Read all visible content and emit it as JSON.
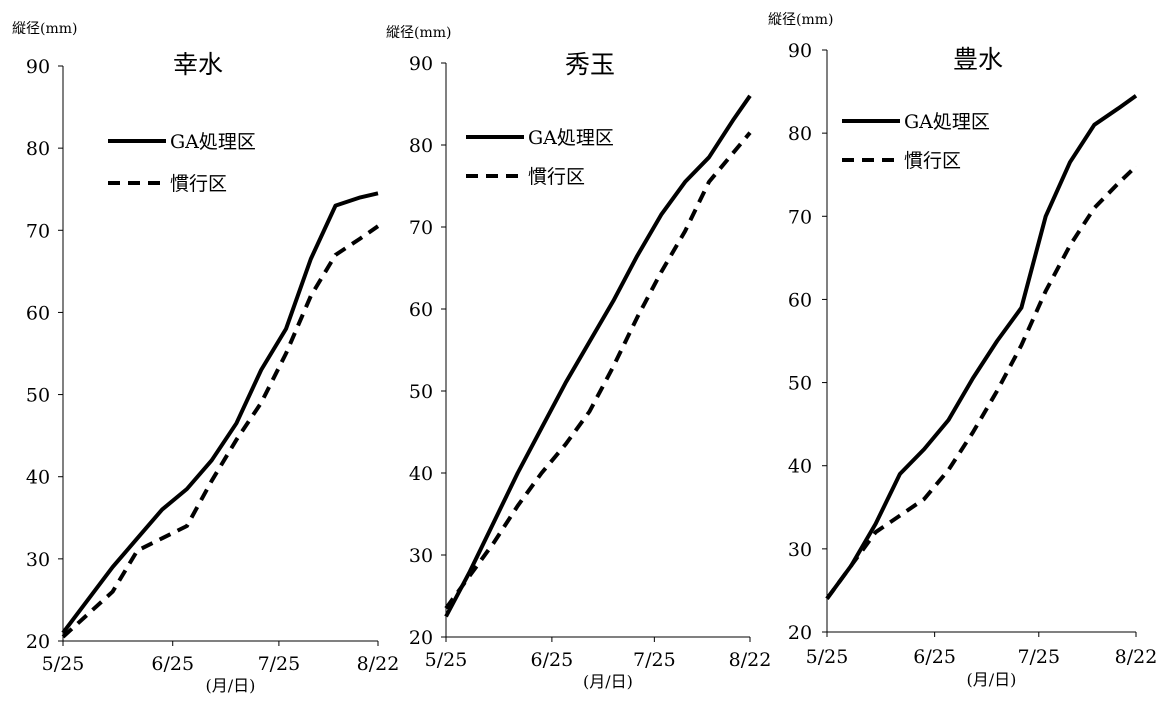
{
  "chart_data": [
    {
      "type": "line",
      "title": "幸水",
      "ylabel": "縦径(mm)",
      "xlabel": "(月/日)",
      "x_ticks": [
        "5/25",
        "6/25",
        "7/25",
        "8/22"
      ],
      "ylim": [
        20,
        90
      ],
      "y_ticks": [
        20,
        30,
        40,
        50,
        60,
        70,
        80,
        90
      ],
      "series": [
        {
          "name": "GA処理区",
          "style": "solid",
          "x": [
            "5/25",
            "6/1",
            "6/8",
            "6/15",
            "6/22",
            "6/29",
            "7/6",
            "7/13",
            "7/20",
            "7/27",
            "8/3",
            "8/10",
            "8/17",
            "8/22"
          ],
          "values": [
            21,
            25,
            29,
            32.5,
            36,
            38.5,
            42,
            46.5,
            53,
            58,
            66.5,
            73,
            74,
            74.5
          ]
        },
        {
          "name": "慣行区",
          "style": "dashed",
          "x": [
            "5/25",
            "6/8",
            "6/15",
            "6/22",
            "6/29",
            "7/6",
            "7/13",
            "7/20",
            "7/27",
            "8/3",
            "8/10",
            "8/17",
            "8/22"
          ],
          "values": [
            20.5,
            26,
            31,
            32.5,
            34,
            39.5,
            44.5,
            49,
            55,
            62,
            67,
            69,
            70.5
          ]
        }
      ],
      "legend": "upper-left"
    },
    {
      "type": "line",
      "title": "秀玉",
      "ylabel": "縦径(mm)",
      "xlabel": "(月/日)",
      "x_ticks": [
        "5/25",
        "6/25",
        "7/25",
        "8/22"
      ],
      "ylim": [
        20,
        90
      ],
      "y_ticks": [
        20,
        30,
        40,
        50,
        60,
        70,
        80,
        90
      ],
      "series": [
        {
          "name": "GA処理区",
          "style": "solid",
          "x": [
            "5/25",
            "6/1",
            "6/8",
            "6/15",
            "6/22",
            "6/29",
            "7/6",
            "7/13",
            "7/20",
            "7/27",
            "8/3",
            "8/10",
            "8/17",
            "8/22"
          ],
          "values": [
            22.5,
            28,
            34,
            40,
            45.5,
            51,
            56,
            61,
            66.5,
            71.5,
            75.5,
            78.5,
            83,
            86
          ]
        },
        {
          "name": "慣行区",
          "style": "dashed",
          "x": [
            "5/25",
            "6/1",
            "6/8",
            "6/15",
            "6/22",
            "6/29",
            "7/6",
            "7/13",
            "7/20",
            "7/27",
            "8/3",
            "8/10",
            "8/17",
            "8/22"
          ],
          "values": [
            23.5,
            27.5,
            31.5,
            36,
            40,
            43.5,
            47.5,
            53,
            59,
            64.5,
            69.5,
            75.5,
            79,
            81.5
          ]
        }
      ],
      "legend": "upper-left"
    },
    {
      "type": "line",
      "title": "豊水",
      "ylabel": "縦径(mm)",
      "xlabel": "(月/日)",
      "x_ticks": [
        "5/25",
        "6/25",
        "7/25",
        "8/22"
      ],
      "ylim": [
        20,
        90
      ],
      "y_ticks": [
        20,
        30,
        40,
        50,
        60,
        70,
        80,
        90
      ],
      "series": [
        {
          "name": "GA処理区",
          "style": "solid",
          "x": [
            "5/25",
            "6/1",
            "6/8",
            "6/15",
            "6/22",
            "6/29",
            "7/6",
            "7/13",
            "7/20",
            "7/27",
            "8/3",
            "8/10",
            "8/17",
            "8/22"
          ],
          "values": [
            24,
            28,
            33,
            39,
            42,
            45.5,
            50.5,
            55,
            59,
            70,
            76.5,
            81,
            83,
            84.5
          ]
        },
        {
          "name": "慣行区",
          "style": "dashed",
          "x": [
            "5/25",
            "6/1",
            "6/8",
            "6/15",
            "6/22",
            "6/29",
            "7/6",
            "7/13",
            "7/20",
            "7/27",
            "8/3",
            "8/10",
            "8/17",
            "8/22"
          ],
          "values": [
            24,
            28,
            32,
            34,
            36,
            39.5,
            44,
            49,
            54.5,
            61,
            66.5,
            71,
            74,
            76
          ]
        }
      ],
      "legend": "upper-left"
    }
  ]
}
